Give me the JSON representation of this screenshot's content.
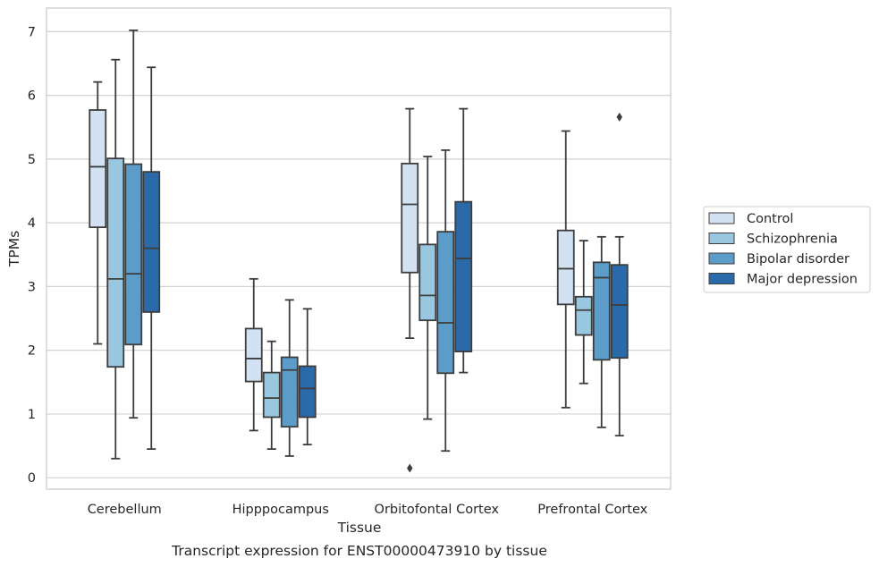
{
  "chart_data": {
    "type": "box",
    "caption": "Transcript expression for ENST00000473910 by tissue",
    "xlabel": "Tissue",
    "ylabel": "TPMs",
    "ylim": [
      -0.18,
      7.37
    ],
    "yticks": [
      0,
      1,
      2,
      3,
      4,
      5,
      6,
      7
    ],
    "grid": true,
    "legend_position": "right",
    "categories": [
      "Cerebellum",
      "Hipppocampus",
      "Orbitofontal Cortex",
      "Prefrontal Cortex"
    ],
    "series": [
      {
        "name": "Control",
        "color": "#d2e2f2",
        "boxes": [
          {
            "whislo": 2.1,
            "q1": 3.93,
            "median": 4.88,
            "q3": 5.77,
            "whishi": 6.21,
            "fliers": []
          },
          {
            "whislo": 0.74,
            "q1": 1.51,
            "median": 1.87,
            "q3": 2.34,
            "whishi": 3.12,
            "fliers": []
          },
          {
            "whislo": 2.19,
            "q1": 3.22,
            "median": 4.29,
            "q3": 4.93,
            "whishi": 5.79,
            "fliers": [
              0.15
            ]
          },
          {
            "whislo": 1.1,
            "q1": 2.72,
            "median": 3.28,
            "q3": 3.88,
            "whishi": 5.44,
            "fliers": []
          }
        ]
      },
      {
        "name": "Schizophrenia",
        "color": "#9ac7e0",
        "boxes": [
          {
            "whislo": 0.3,
            "q1": 1.74,
            "median": 3.12,
            "q3": 5.01,
            "whishi": 6.56,
            "fliers": []
          },
          {
            "whislo": 0.45,
            "q1": 0.95,
            "median": 1.25,
            "q3": 1.65,
            "whishi": 2.14,
            "fliers": []
          },
          {
            "whislo": 0.92,
            "q1": 2.47,
            "median": 2.86,
            "q3": 3.66,
            "whishi": 5.04,
            "fliers": []
          },
          {
            "whislo": 1.48,
            "q1": 2.24,
            "median": 2.63,
            "q3": 2.84,
            "whishi": 3.72,
            "fliers": []
          }
        ]
      },
      {
        "name": "Bipolar disorder",
        "color": "#5b9cc9",
        "boxes": [
          {
            "whislo": 0.94,
            "q1": 2.09,
            "median": 3.2,
            "q3": 4.92,
            "whishi": 7.02,
            "fliers": []
          },
          {
            "whislo": 0.34,
            "q1": 0.8,
            "median": 1.69,
            "q3": 1.89,
            "whishi": 2.79,
            "fliers": []
          },
          {
            "whislo": 0.42,
            "q1": 1.64,
            "median": 2.43,
            "q3": 3.86,
            "whishi": 5.14,
            "fliers": []
          },
          {
            "whislo": 0.79,
            "q1": 1.85,
            "median": 3.14,
            "q3": 3.38,
            "whishi": 3.78,
            "fliers": []
          }
        ]
      },
      {
        "name": "Major depression",
        "color": "#2b6aa8",
        "boxes": [
          {
            "whislo": 0.45,
            "q1": 2.6,
            "median": 3.6,
            "q3": 4.8,
            "whishi": 6.44,
            "fliers": []
          },
          {
            "whislo": 0.52,
            "q1": 0.95,
            "median": 1.4,
            "q3": 1.75,
            "whishi": 2.65,
            "fliers": []
          },
          {
            "whislo": 1.65,
            "q1": 1.98,
            "median": 3.44,
            "q3": 4.33,
            "whishi": 5.79,
            "fliers": []
          },
          {
            "whislo": 0.66,
            "q1": 1.88,
            "median": 2.71,
            "q3": 3.34,
            "whishi": 3.78,
            "fliers": [
              5.66
            ]
          }
        ]
      }
    ]
  }
}
